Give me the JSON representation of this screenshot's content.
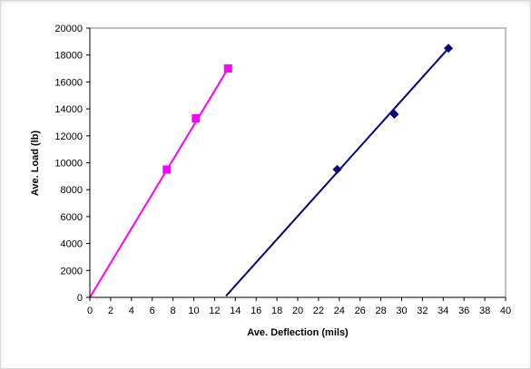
{
  "chart_data": {
    "type": "scatter",
    "title": "",
    "xlabel": "Ave. Deflection (mils)",
    "ylabel": "Ave. Load (lb)",
    "xlim": [
      0,
      40
    ],
    "ylim": [
      0,
      20000
    ],
    "xticks": [
      0,
      2,
      4,
      6,
      8,
      10,
      12,
      14,
      16,
      18,
      20,
      22,
      24,
      26,
      28,
      30,
      32,
      34,
      36,
      38,
      40
    ],
    "yticks": [
      0,
      2000,
      4000,
      6000,
      8000,
      10000,
      12000,
      14000,
      16000,
      18000,
      20000
    ],
    "grid": false,
    "legend": "none",
    "series": [
      {
        "marker": "square",
        "color": "#ff00ff",
        "points": [
          [
            7.4,
            9500
          ],
          [
            10.2,
            13300
          ],
          [
            13.3,
            17000
          ]
        ],
        "trendline": [
          [
            0,
            0
          ],
          [
            13.3,
            17000
          ]
        ]
      },
      {
        "marker": "diamond",
        "color": "#000080",
        "points": [
          [
            23.8,
            9500
          ],
          [
            29.3,
            13600
          ],
          [
            34.5,
            18500
          ]
        ],
        "trendline": [
          [
            13.1,
            100
          ],
          [
            34.5,
            18500
          ]
        ]
      }
    ]
  }
}
